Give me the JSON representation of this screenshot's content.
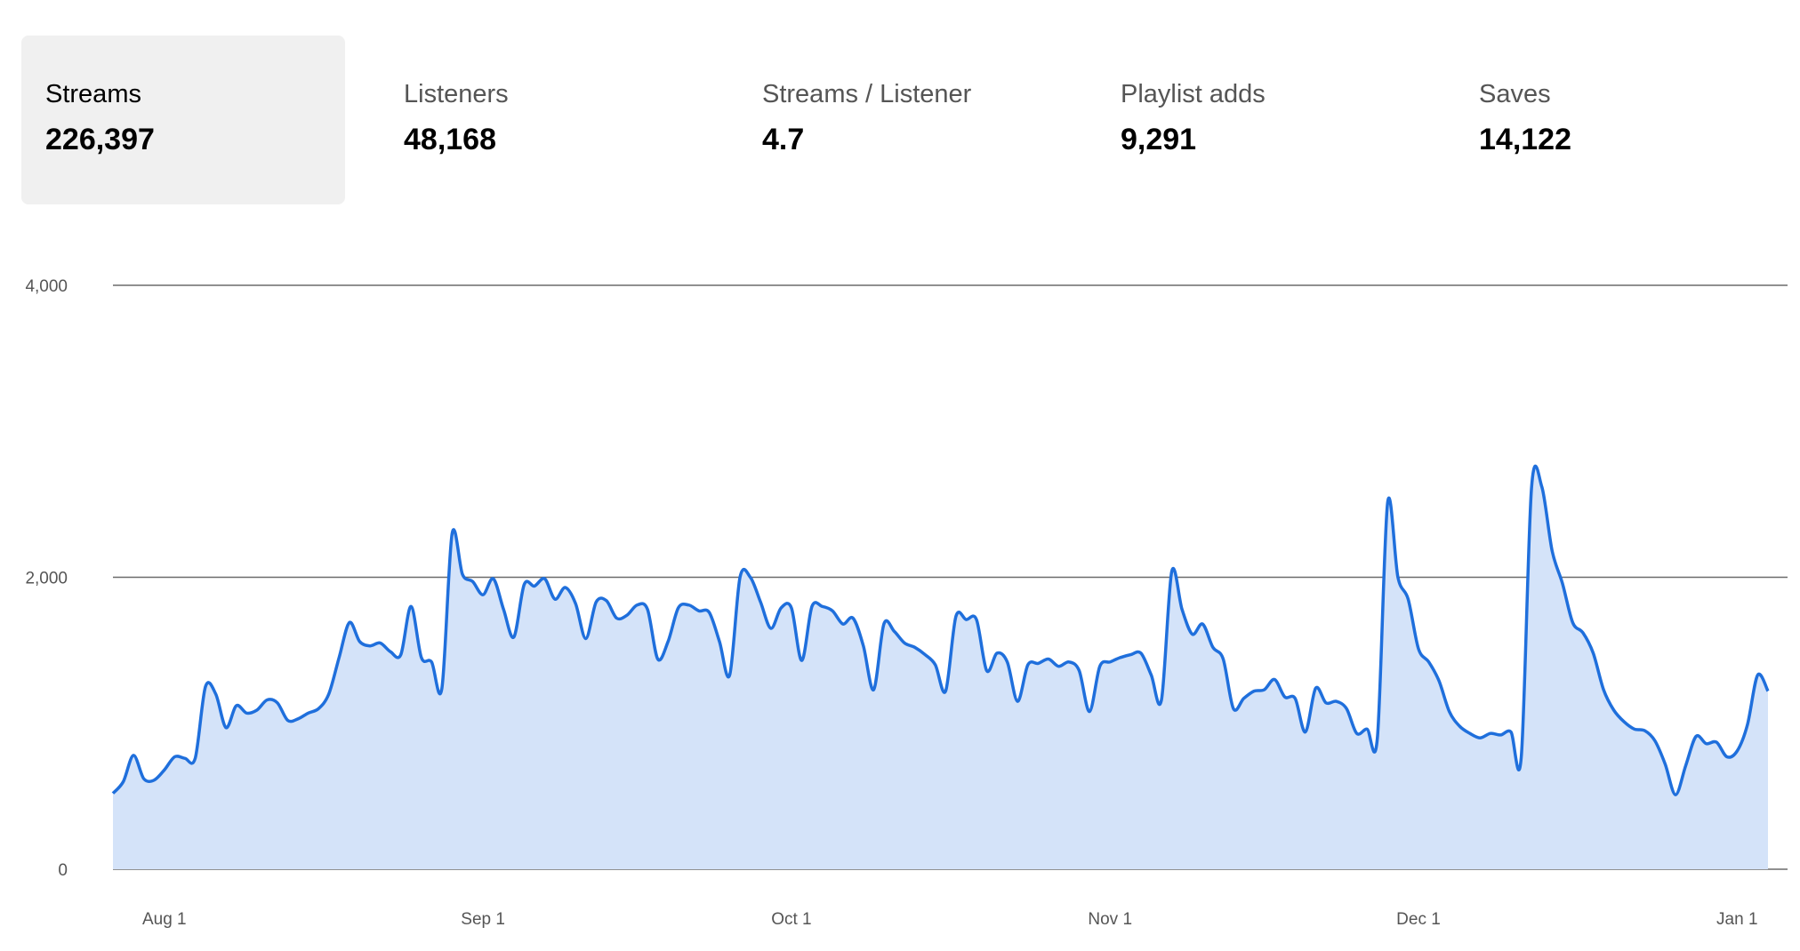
{
  "tabs": [
    {
      "label": "Streams",
      "value": "226,397",
      "active": true
    },
    {
      "label": "Listeners",
      "value": "48,168",
      "active": false
    },
    {
      "label": "Streams / Listener",
      "value": "4.7",
      "active": false
    },
    {
      "label": "Playlist adds",
      "value": "9,291",
      "active": false
    },
    {
      "label": "Saves",
      "value": "14,122",
      "active": false
    }
  ],
  "colors": {
    "line": "#1f6fdc",
    "area": "#d4e3f9",
    "gridline": "#6b6b6b",
    "active_tab_bg": "#f0f0f0"
  },
  "chart_data": {
    "type": "area",
    "title": "",
    "xlabel": "",
    "ylabel": "",
    "ylim": [
      0,
      4000
    ],
    "y_ticks": [
      "4,000",
      "2,000",
      "0"
    ],
    "y_tick_values": [
      4000,
      2000,
      0
    ],
    "x_ticks": [
      "Aug 1",
      "Sep 1",
      "Oct 1",
      "Nov 1",
      "Dec 1",
      "Jan 1"
    ],
    "x_tick_dates": [
      "2023-08-01",
      "2023-09-01",
      "2023-10-01",
      "2023-11-01",
      "2023-12-01",
      "2024-01-01"
    ],
    "grid": true,
    "series": [
      {
        "x_start": "2023-07-27",
        "x_end": "2024-01-02",
        "values": [
          520,
          600,
          780,
          620,
          610,
          680,
          770,
          760,
          760,
          1250,
          1200,
          970,
          1120,
          1070,
          1090,
          1160,
          1140,
          1020,
          1030,
          1070,
          1100,
          1200,
          1450,
          1690,
          1560,
          1530,
          1550,
          1490,
          1470,
          1800,
          1450,
          1420,
          1240,
          2300,
          2020,
          1970,
          1880,
          1990,
          1780,
          1590,
          1950,
          1940,
          1990,
          1850,
          1930,
          1820,
          1580,
          1830,
          1840,
          1720,
          1740,
          1810,
          1780,
          1440,
          1560,
          1790,
          1810,
          1770,
          1760,
          1560,
          1330,
          2000,
          2000,
          1830,
          1650,
          1790,
          1790,
          1430,
          1800,
          1800,
          1770,
          1680,
          1720,
          1530,
          1230,
          1680,
          1630,
          1550,
          1520,
          1470,
          1400,
          1220,
          1730,
          1710,
          1710,
          1360,
          1480,
          1420,
          1150,
          1400,
          1410,
          1440,
          1390,
          1420,
          1360,
          1080,
          1390,
          1420,
          1450,
          1470,
          1480,
          1330,
          1160,
          2040,
          1780,
          1610,
          1680,
          1520,
          1440,
          1100,
          1170,
          1220,
          1230,
          1300,
          1180,
          1170,
          940,
          1240,
          1140,
          1150,
          1100,
          930,
          960,
          900,
          2510,
          2000,
          1850,
          1510,
          1420,
          1290,
          1080,
          980,
          930,
          900,
          930,
          920,
          940,
          770,
          2610,
          2620,
          2180,
          1960,
          1690,
          1620,
          1480,
          1230,
          1090,
          1010,
          960,
          950,
          880,
          720,
          510,
          710,
          910,
          860,
          870,
          770,
          810,
          990,
          1330,
          1220
        ]
      }
    ]
  }
}
